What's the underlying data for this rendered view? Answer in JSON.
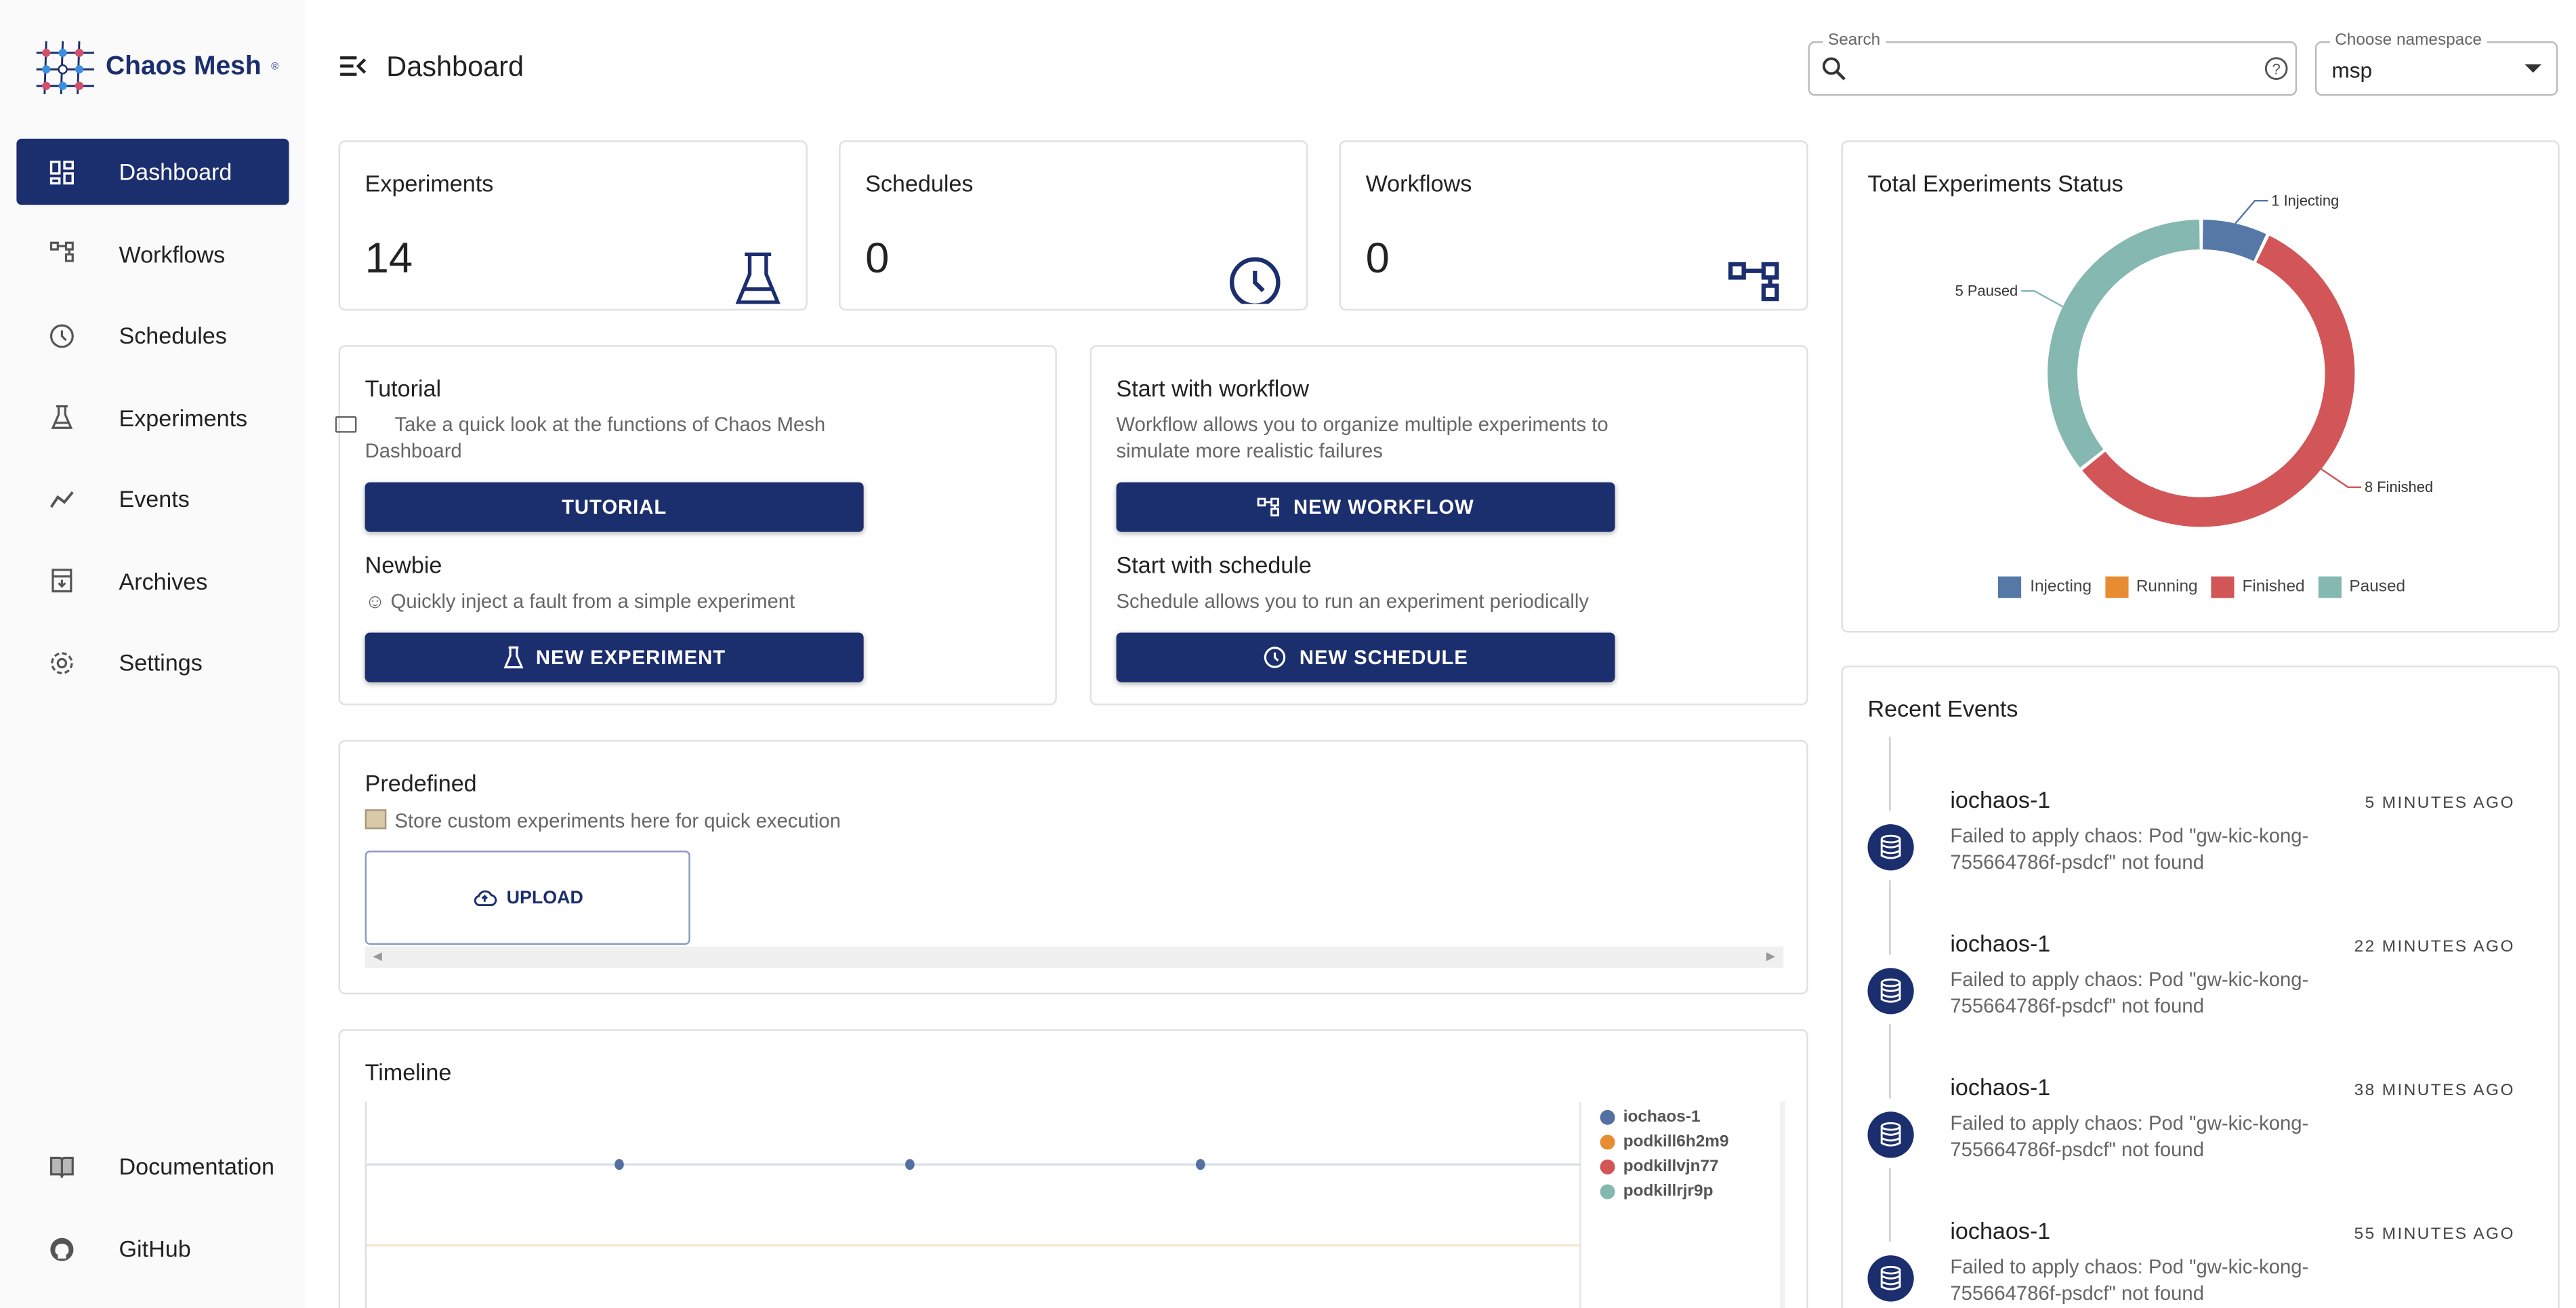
{
  "app": {
    "name": "Chaos Mesh",
    "page_title": "Dashboard"
  },
  "sidebar": {
    "items": [
      {
        "label": "Dashboard",
        "icon": "dashboard-icon",
        "active": true
      },
      {
        "label": "Workflows",
        "icon": "workflow-icon"
      },
      {
        "label": "Schedules",
        "icon": "clock-icon"
      },
      {
        "label": "Experiments",
        "icon": "flask-icon"
      },
      {
        "label": "Events",
        "icon": "timeline-icon"
      },
      {
        "label": "Archives",
        "icon": "archive-icon"
      },
      {
        "label": "Settings",
        "icon": "gear-icon"
      }
    ],
    "bottom": [
      {
        "label": "Documentation",
        "icon": "book-icon"
      },
      {
        "label": "GitHub",
        "icon": "github-icon"
      }
    ]
  },
  "header": {
    "search": {
      "label": "Search",
      "value": ""
    },
    "namespace": {
      "label": "Choose namespace",
      "value": "msp"
    }
  },
  "stats": [
    {
      "label": "Experiments",
      "value": "14"
    },
    {
      "label": "Schedules",
      "value": "0"
    },
    {
      "label": "Workflows",
      "value": "0"
    }
  ],
  "tutorial": {
    "title": "Tutorial",
    "desc": "Take a quick look at the functions of Chaos Mesh Dashboard",
    "button": "TUTORIAL",
    "newbie_title": "Newbie",
    "newbie_desc": "Quickly inject a fault from a simple experiment",
    "newbie_button": "NEW EXPERIMENT"
  },
  "workflow": {
    "title": "Start with workflow",
    "desc": "Workflow allows you to organize multiple experiments to simulate more realistic failures",
    "button": "NEW WORKFLOW",
    "schedule_title": "Start with schedule",
    "schedule_desc": "Schedule allows you to run an experiment periodically",
    "schedule_button": "NEW SCHEDULE"
  },
  "predefined": {
    "title": "Predefined",
    "desc": "Store custom experiments here for quick execution",
    "upload": "UPLOAD"
  },
  "timeline": {
    "title": "Timeline",
    "legend": [
      {
        "name": "iochaos-1",
        "color": "#5470a0"
      },
      {
        "name": "podkill6h2m9",
        "color": "#e78c32"
      },
      {
        "name": "podkillvjn77",
        "color": "#d25558"
      },
      {
        "name": "podkillrjr9p",
        "color": "#84b8b1"
      }
    ]
  },
  "status": {
    "title": "Total Experiments Status",
    "chart_data": {
      "type": "pie",
      "categories": [
        "Injecting",
        "Running",
        "Finished",
        "Paused"
      ],
      "values": [
        1,
        0,
        8,
        5
      ],
      "colors": [
        "#5578a6",
        "#e78c32",
        "#d25558",
        "#84b8b1"
      ],
      "labels": [
        "1 Injecting",
        "",
        "8 Finished",
        "5 Paused"
      ],
      "legend": "bottom",
      "donut": true
    }
  },
  "events": {
    "title": "Recent Events",
    "items": [
      {
        "name": "iochaos-1",
        "time": "5 MINUTES AGO",
        "msg": "Failed to apply chaos: Pod \"gw-kic-kong-755664786f-psdcf\" not found"
      },
      {
        "name": "iochaos-1",
        "time": "22 MINUTES AGO",
        "msg": "Failed to apply chaos: Pod \"gw-kic-kong-755664786f-psdcf\" not found"
      },
      {
        "name": "iochaos-1",
        "time": "38 MINUTES AGO",
        "msg": "Failed to apply chaos: Pod \"gw-kic-kong-755664786f-psdcf\" not found"
      },
      {
        "name": "iochaos-1",
        "time": "55 MINUTES AGO",
        "msg": "Failed to apply chaos: Pod \"gw-kic-kong-755664786f-psdcf\" not found"
      }
    ]
  }
}
